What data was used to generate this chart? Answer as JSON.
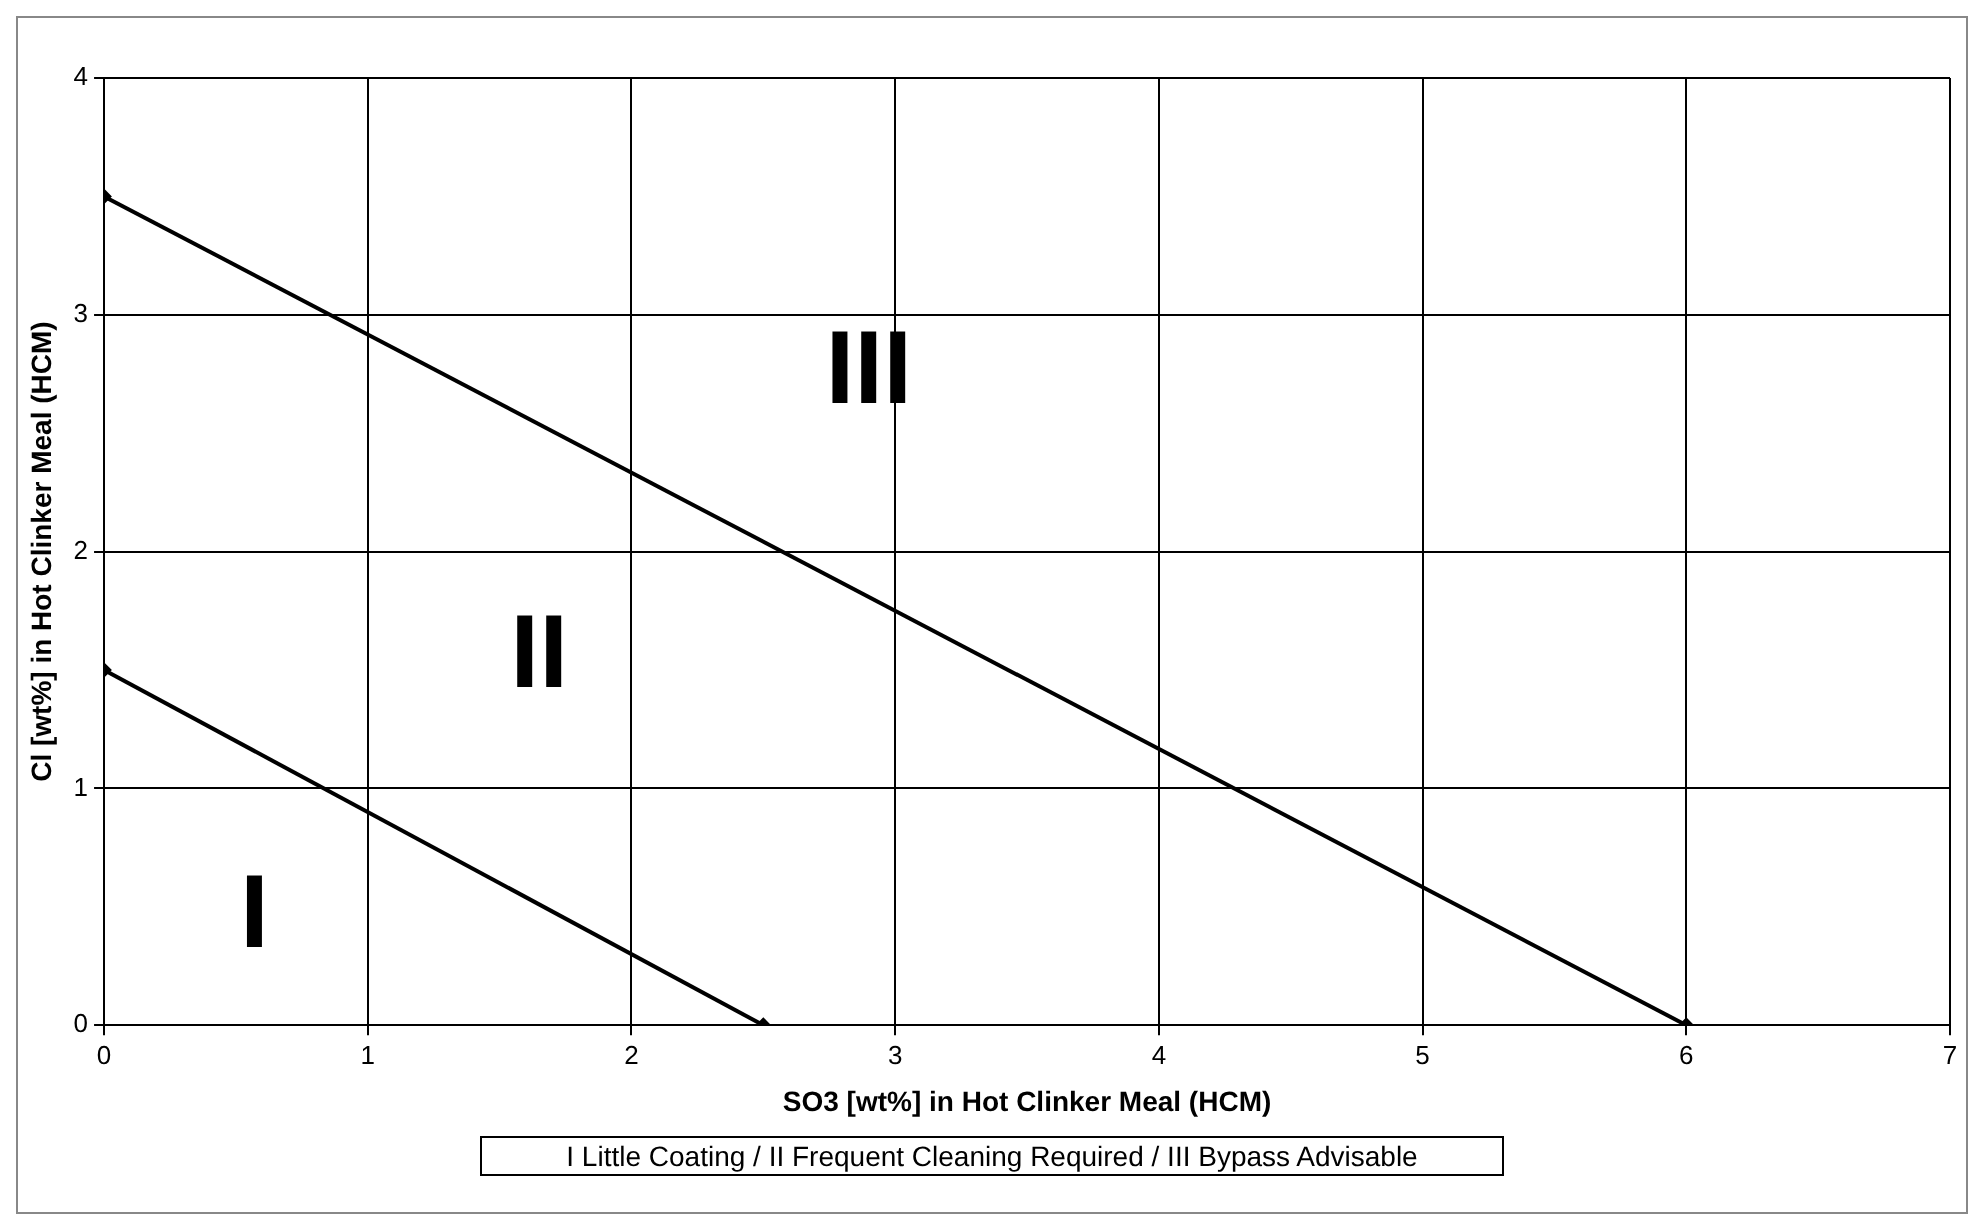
{
  "chart_data": {
    "type": "line",
    "xlabel": "SO3 [wt%] in Hot Clinker Meal (HCM)",
    "ylabel": "Cl [wt%] in Hot Clinker Meal (HCM)",
    "series": [
      {
        "color": "#000000",
        "x": [
          0,
          2.5
        ],
        "values": [
          1.5,
          0
        ]
      },
      {
        "color": "#000000",
        "x": [
          0,
          6
        ],
        "values": [
          3.5,
          0
        ]
      }
    ],
    "xlim": [
      0,
      7
    ],
    "xticks": [
      0,
      1,
      2,
      3,
      4,
      5,
      6,
      7
    ],
    "ylim": [
      0,
      4
    ],
    "yticks": [
      0,
      1,
      2,
      3,
      4
    ],
    "grid": true,
    "legend": false,
    "marker": "diamond",
    "line_style": "solid",
    "annotations": [
      "I",
      "II",
      "III",
      "I Little Coating / II Frequent Cleaning Required / III Bypass Advisable"
    ]
  }
}
